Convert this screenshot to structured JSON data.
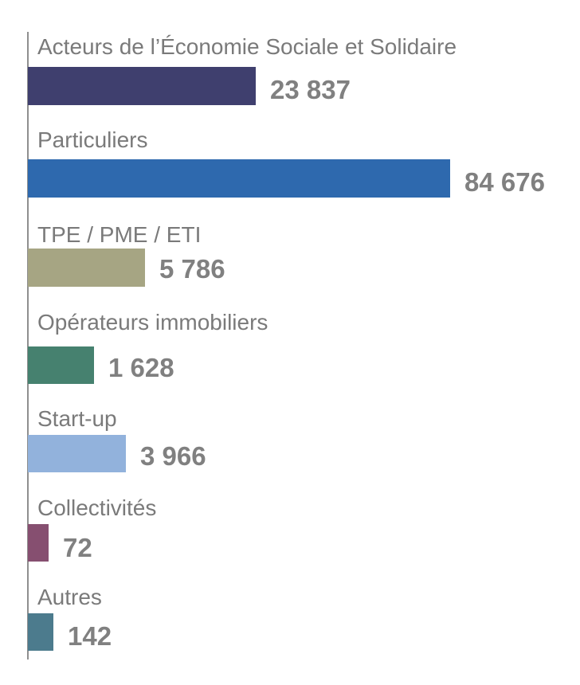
{
  "chart_data": {
    "type": "bar",
    "orientation": "horizontal",
    "categories": [
      "Acteurs de l’Économie Sociale et Solidaire",
      "Particuliers",
      "TPE / PME / ETI",
      "Opérateurs immobiliers",
      "Start-up",
      "Collectivités",
      "Autres"
    ],
    "values": [
      23837,
      84676,
      5786,
      1628,
      3966,
      72,
      142
    ],
    "value_labels": [
      "23 837",
      "84 676",
      "5 786",
      "1 628",
      "3 966",
      "72",
      "142"
    ],
    "colors": [
      "#3f3f6e",
      "#2e69ae",
      "#a6a583",
      "#46816f",
      "#92b2dc",
      "#864f70",
      "#4c7b8d"
    ],
    "title": "",
    "xlabel": "",
    "ylabel": "",
    "grid": false,
    "legend": "none"
  }
}
